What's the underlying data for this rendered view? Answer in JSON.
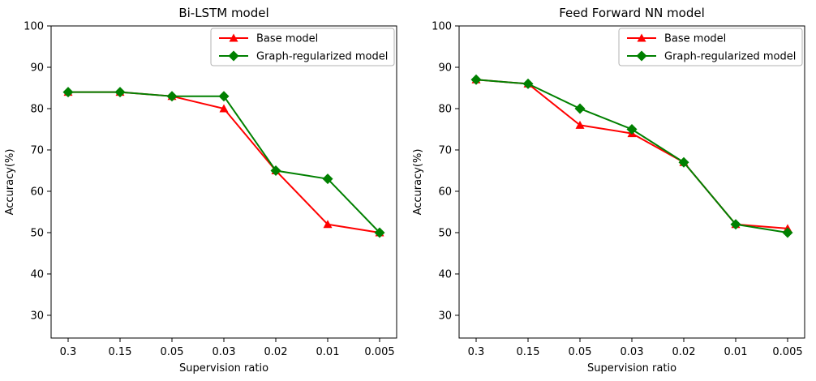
{
  "figure": {
    "background": "#ffffff",
    "axis_color": "#000000",
    "legend_border_color": "#b3b3b3",
    "legend_background": "#ffffff"
  },
  "chart_data": [
    {
      "type": "line",
      "title": "Bi-LSTM model",
      "xlabel": "Supervision ratio",
      "ylabel": "Accuracy(%)",
      "categories": [
        "0.3",
        "0.15",
        "0.05",
        "0.03",
        "0.02",
        "0.01",
        "0.005"
      ],
      "ylim": [
        24.5,
        100
      ],
      "yticks": [
        30,
        40,
        50,
        60,
        70,
        80,
        90,
        100
      ],
      "grid": false,
      "legend_position": "upper right",
      "series": [
        {
          "name": "Base model",
          "color": "#ff0000",
          "marker": "triangle",
          "values": [
            84,
            84,
            83,
            80,
            65,
            52,
            50
          ]
        },
        {
          "name": "Graph-regularized model",
          "color": "#008000",
          "marker": "diamond",
          "values": [
            84,
            84,
            83,
            83,
            65,
            63,
            50
          ]
        }
      ]
    },
    {
      "type": "line",
      "title": "Feed Forward NN model",
      "xlabel": "Supervision ratio",
      "ylabel": "Accuracy(%)",
      "categories": [
        "0.3",
        "0.15",
        "0.05",
        "0.03",
        "0.02",
        "0.01",
        "0.005"
      ],
      "ylim": [
        24.5,
        100
      ],
      "yticks": [
        30,
        40,
        50,
        60,
        70,
        80,
        90,
        100
      ],
      "grid": false,
      "legend_position": "upper right",
      "series": [
        {
          "name": "Base model",
          "color": "#ff0000",
          "marker": "triangle",
          "values": [
            87,
            86,
            76,
            74,
            67,
            52,
            51
          ]
        },
        {
          "name": "Graph-regularized model",
          "color": "#008000",
          "marker": "diamond",
          "values": [
            87,
            86,
            80,
            75,
            67,
            52,
            50
          ]
        }
      ]
    }
  ]
}
